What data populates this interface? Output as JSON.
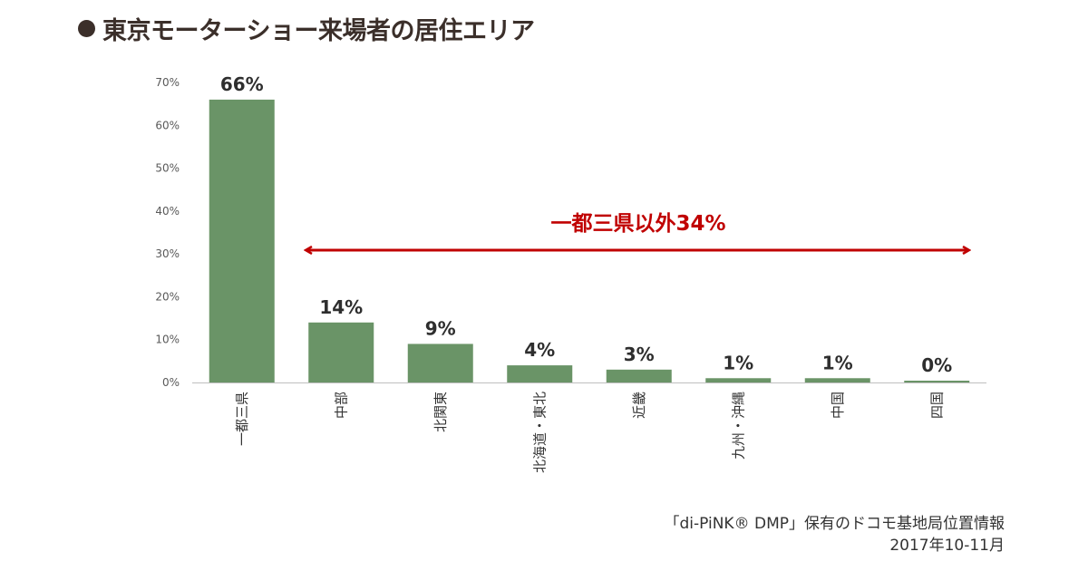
{
  "title": "東京モーターショー来場者の居住エリア",
  "chart_data": {
    "type": "bar",
    "title": "東京モーターショー来場者の居住エリア",
    "categories": [
      "一都三県",
      "中部",
      "北関東",
      "北海道・東北",
      "近畿",
      "九州・沖縄",
      "中国",
      "四国"
    ],
    "values": [
      66,
      14,
      9,
      4,
      3,
      1,
      1,
      0
    ],
    "data_labels": [
      "66%",
      "14%",
      "9%",
      "4%",
      "3%",
      "1%",
      "1%",
      "0%"
    ],
    "value_unit": "%",
    "ylim": [
      0,
      70
    ],
    "yticks": [
      0,
      10,
      20,
      30,
      40,
      50,
      60,
      70
    ],
    "ytick_labels": [
      "0%",
      "10%",
      "20%",
      "30%",
      "40%",
      "50%",
      "60%",
      "70%"
    ],
    "xlabel": "",
    "ylabel": "",
    "grid": false,
    "bar_color": "#6a9467",
    "annotation": {
      "text": "一都三県以外34%",
      "color": "#c00000",
      "arrow": "double-headed, spanning 中部 through 四国"
    }
  },
  "source": {
    "line1": "「di-PiNK® DMP」保有のドコモ基地局位置情報",
    "line2": "2017年10-11月"
  }
}
